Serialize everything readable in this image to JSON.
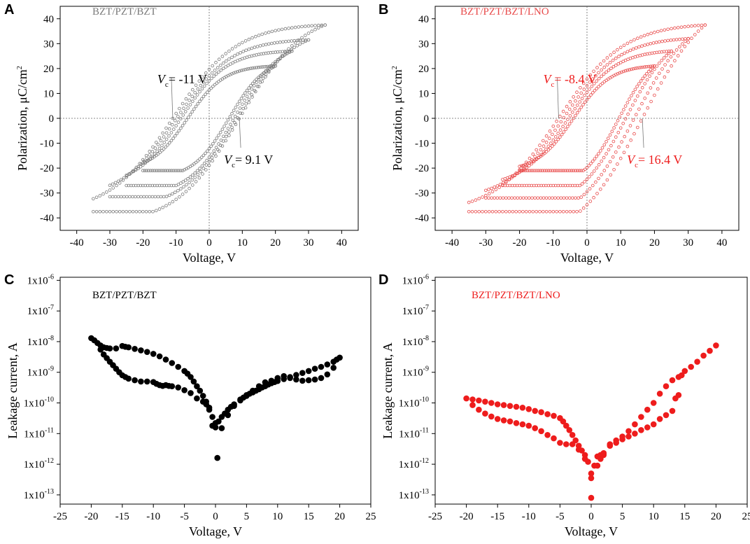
{
  "chart_data": [
    {
      "panel": "A",
      "type": "scatter",
      "subtype": "hysteresis-loops",
      "series_label": "BZT/PZT/BZT",
      "color": "#7a7a7a",
      "xlabel": "Voltage, V",
      "ylabel": "Polarization, μC/cm2",
      "xlim": [
        -45,
        45
      ],
      "ylim": [
        -45,
        45
      ],
      "xticks": [
        -40,
        -30,
        -20,
        -10,
        0,
        10,
        20,
        30,
        40
      ],
      "yticks": [
        -40,
        -30,
        -20,
        -10,
        0,
        10,
        20,
        30,
        40
      ],
      "loops": [
        {
          "vmax": 20,
          "pmax": 21,
          "upper_zero": -6.5,
          "lower_zero": 6.0,
          "up_start": -6.3,
          "down_end": 1.0,
          "offset": 0
        },
        {
          "vmax": 25,
          "pmax": 27,
          "upper_zero": -8.5,
          "lower_zero": 7.5,
          "up_start": -9.0,
          "down_end": 3.0,
          "offset": 0
        },
        {
          "vmax": 30,
          "pmax": 31.5,
          "upper_zero": -9.8,
          "lower_zero": 8.5,
          "up_start": -11.0,
          "down_end": 5.5,
          "offset": 0
        },
        {
          "vmax": 35,
          "pmax": 37.5,
          "upper_zero": -11.0,
          "lower_zero": 9.1,
          "up_start": -16.0,
          "down_end": 7.0,
          "offset": 0
        }
      ],
      "annotations": [
        {
          "var": "V",
          "sub": "c",
          "text": "= -11 V",
          "x": -11,
          "y": 0
        },
        {
          "var": "V",
          "sub": "c",
          "text": "= 9.1 V",
          "x": 9.1,
          "y": 0
        }
      ]
    },
    {
      "panel": "B",
      "type": "scatter",
      "subtype": "hysteresis-loops",
      "series_label": "BZT/PZT/BZT/LNO",
      "color": "#e84a4a",
      "xlabel": "Voltage, V",
      "ylabel": "Polarization, μC/cm2",
      "xlim": [
        -45,
        45
      ],
      "ylim": [
        -45,
        45
      ],
      "xticks": [
        -40,
        -30,
        -20,
        -10,
        0,
        10,
        20,
        30,
        40
      ],
      "yticks": [
        -40,
        -30,
        -20,
        -10,
        0,
        10,
        20,
        30,
        40
      ],
      "loops": [
        {
          "vmax": 20,
          "pmax": 21,
          "upper_zero": -4.0,
          "lower_zero": 9.5,
          "up_start": -3.0,
          "down_end": 4.0,
          "offset": 0
        },
        {
          "vmax": 25,
          "pmax": 27,
          "upper_zero": -5.5,
          "lower_zero": 11.5,
          "up_start": -5.0,
          "down_end": 7.0,
          "offset": 0
        },
        {
          "vmax": 30,
          "pmax": 32,
          "upper_zero": -7.0,
          "lower_zero": 14.0,
          "up_start": -8.0,
          "down_end": 10.0,
          "offset": 0
        },
        {
          "vmax": 35,
          "pmax": 37.5,
          "upper_zero": -8.4,
          "lower_zero": 16.4,
          "up_start": -12.0,
          "down_end": 12.0,
          "offset": 0
        }
      ],
      "annotations": [
        {
          "var": "V",
          "sub": "c",
          "text": "= -8.4 V",
          "x": -8.4,
          "y": 0
        },
        {
          "var": "V",
          "sub": "c",
          "text": "= 16.4 V",
          "x": 16.4,
          "y": 0
        }
      ]
    },
    {
      "panel": "C",
      "type": "scatter",
      "series_label": "BZT/PZT/BZT",
      "color": "#000000",
      "xlabel": "Voltage, V",
      "ylabel": "Leakage current, A",
      "yscale": "log",
      "xlim": [
        -25,
        25
      ],
      "ylim_exp": [
        -13.3,
        -5.9
      ],
      "xticks": [
        -25,
        -20,
        -15,
        -10,
        -5,
        0,
        5,
        10,
        15,
        20,
        25
      ],
      "yticks": [
        "1x10-6",
        "1x10-7",
        "1x10-8",
        "1x10-9",
        "1x10-10",
        "1x10-11",
        "1x10-12",
        "1x10-13"
      ],
      "points": [
        [
          -20,
          1.3e-08
        ],
        [
          -19.5,
          1.1e-08
        ],
        [
          -19,
          9e-09
        ],
        [
          -18.5,
          7.5e-09
        ],
        [
          -18,
          6.5e-09
        ],
        [
          -17.5,
          6.2e-09
        ],
        [
          -17,
          6e-09
        ],
        [
          -16,
          6e-09
        ],
        [
          -15,
          7.2e-09
        ],
        [
          -14.5,
          6.8e-09
        ],
        [
          -14,
          6.5e-09
        ],
        [
          -13,
          5.8e-09
        ],
        [
          -12,
          5.2e-09
        ],
        [
          -11,
          4.6e-09
        ],
        [
          -10,
          4e-09
        ],
        [
          -9,
          3.3e-09
        ],
        [
          -8,
          2.6e-09
        ],
        [
          -7,
          2e-09
        ],
        [
          -6,
          1.5e-09
        ],
        [
          -5,
          1.1e-09
        ],
        [
          -4.5,
          9e-10
        ],
        [
          -4,
          7e-10
        ],
        [
          -3.5,
          5e-10
        ],
        [
          -3,
          3.5e-10
        ],
        [
          -2.5,
          2.5e-10
        ],
        [
          -2,
          1.7e-10
        ],
        [
          -1.5,
          1.1e-10
        ],
        [
          -1,
          7e-11
        ],
        [
          -0.5,
          3.5e-11
        ],
        [
          0,
          2.2e-11
        ],
        [
          0.3,
          1.6e-12
        ],
        [
          -18.5,
          5.5e-09
        ],
        [
          -18,
          3.8e-09
        ],
        [
          -17.5,
          2.9e-09
        ],
        [
          -17,
          2.2e-09
        ],
        [
          -16.5,
          1.7e-09
        ],
        [
          -16,
          1.3e-09
        ],
        [
          -15.5,
          1e-09
        ],
        [
          -15,
          8e-10
        ],
        [
          -14.5,
          7e-10
        ],
        [
          -14,
          6.2e-10
        ],
        [
          -13,
          5.5e-10
        ],
        [
          -12,
          5e-10
        ],
        [
          -11,
          5e-10
        ],
        [
          -10,
          4.8e-10
        ],
        [
          -9.5,
          4.2e-10
        ],
        [
          -9,
          3.8e-10
        ],
        [
          -8.5,
          3.6e-10
        ],
        [
          -8,
          3.8e-10
        ],
        [
          -7.5,
          3.6e-10
        ],
        [
          -7,
          3.5e-10
        ],
        [
          -6,
          3.2e-10
        ],
        [
          -5,
          2.6e-10
        ],
        [
          -4,
          2.1e-10
        ],
        [
          -3,
          1.4e-10
        ],
        [
          -2,
          1.1e-10
        ],
        [
          -1.5,
          9e-11
        ],
        [
          -1,
          6e-11
        ],
        [
          -0.5,
          1.8e-11
        ],
        [
          0,
          1.6e-11
        ],
        [
          0.5,
          2.5e-11
        ],
        [
          1,
          3.5e-11
        ],
        [
          1.5,
          4.5e-11
        ],
        [
          2,
          6e-11
        ],
        [
          2.5,
          7.5e-11
        ],
        [
          3,
          9e-11
        ],
        [
          4,
          1.2e-10
        ],
        [
          4.5,
          1.5e-10
        ],
        [
          5,
          1.7e-10
        ],
        [
          5.5,
          2e-10
        ],
        [
          6,
          2.2e-10
        ],
        [
          6.5,
          2.5e-10
        ],
        [
          7,
          2.8e-10
        ],
        [
          7.5,
          3.2e-10
        ],
        [
          8,
          3.5e-10
        ],
        [
          8.5,
          4e-10
        ],
        [
          9,
          4.4e-10
        ],
        [
          9.5,
          4.8e-10
        ],
        [
          10,
          5.2e-10
        ],
        [
          11,
          6e-10
        ],
        [
          12,
          7e-10
        ],
        [
          13,
          8.2e-10
        ],
        [
          14,
          9.5e-10
        ],
        [
          15,
          1.1e-09
        ],
        [
          16,
          1.3e-09
        ],
        [
          17,
          1.5e-09
        ],
        [
          18,
          1.8e-09
        ],
        [
          19,
          2.2e-09
        ],
        [
          19.5,
          2.6e-09
        ],
        [
          20,
          3e-09
        ],
        [
          1,
          1.5e-11
        ],
        [
          2,
          4e-11
        ],
        [
          3,
          8e-11
        ],
        [
          4,
          1.3e-10
        ],
        [
          5,
          1.8e-10
        ],
        [
          6,
          2.5e-10
        ],
        [
          7,
          3.5e-10
        ],
        [
          8,
          4.7e-10
        ],
        [
          9,
          5.3e-10
        ],
        [
          10,
          6.5e-10
        ],
        [
          11,
          7.5e-10
        ],
        [
          12,
          6.5e-10
        ],
        [
          13,
          5.8e-10
        ],
        [
          14,
          5.3e-10
        ],
        [
          15,
          5.5e-10
        ],
        [
          16,
          5.8e-10
        ],
        [
          17,
          6.5e-10
        ],
        [
          18,
          8.5e-10
        ],
        [
          19,
          1.4e-09
        ]
      ]
    },
    {
      "panel": "D",
      "type": "scatter",
      "series_label": "BZT/PZT/BZT/LNO",
      "color": "#ee1c1c",
      "xlabel": "Voltage, V",
      "ylabel": "Leakage current, A",
      "yscale": "log",
      "xlim": [
        -25,
        25
      ],
      "ylim_exp": [
        -13.3,
        -5.9
      ],
      "xticks": [
        -25,
        -20,
        -15,
        -10,
        -5,
        0,
        5,
        10,
        15,
        20,
        25
      ],
      "yticks": [
        "1x10-6",
        "1x10-7",
        "1x10-8",
        "1x10-9",
        "1x10-10",
        "1x10-11",
        "1x10-12",
        "1x10-13"
      ],
      "points": [
        [
          -20,
          1.4e-10
        ],
        [
          -19,
          1.3e-10
        ],
        [
          -18,
          1.2e-10
        ],
        [
          -17,
          1.1e-10
        ],
        [
          -16,
          1e-10
        ],
        [
          -15,
          9e-11
        ],
        [
          -14,
          8.5e-11
        ],
        [
          -13,
          8e-11
        ],
        [
          -12,
          7.5e-11
        ],
        [
          -11,
          7e-11
        ],
        [
          -10,
          6.3e-11
        ],
        [
          -9,
          5.5e-11
        ],
        [
          -8,
          5e-11
        ],
        [
          -7,
          4.3e-11
        ],
        [
          -6,
          3.8e-11
        ],
        [
          -5,
          3.2e-11
        ],
        [
          -4.5,
          2.5e-11
        ],
        [
          -4,
          1.8e-11
        ],
        [
          -3.5,
          1.3e-11
        ],
        [
          -3,
          9e-12
        ],
        [
          -2.5,
          6e-12
        ],
        [
          -2,
          4e-12
        ],
        [
          -1.5,
          2.8e-12
        ],
        [
          -1,
          2e-12
        ],
        [
          -0.5,
          1.2e-12
        ],
        [
          0,
          5e-13
        ],
        [
          0,
          8e-14
        ],
        [
          -19,
          8.5e-11
        ],
        [
          -18,
          6e-11
        ],
        [
          -17,
          4.5e-11
        ],
        [
          -16,
          3.6e-11
        ],
        [
          -15,
          3e-11
        ],
        [
          -14,
          2.7e-11
        ],
        [
          -13,
          2.5e-11
        ],
        [
          -12,
          2.2e-11
        ],
        [
          -11,
          2e-11
        ],
        [
          -10,
          1.8e-11
        ],
        [
          -9,
          1.5e-11
        ],
        [
          -8,
          1.2e-11
        ],
        [
          -7,
          9e-12
        ],
        [
          -6,
          7e-12
        ],
        [
          -5,
          5e-12
        ],
        [
          -4,
          4.5e-12
        ],
        [
          -3,
          4.5e-12
        ],
        [
          -2,
          3e-12
        ],
        [
          -1,
          1.5e-12
        ],
        [
          0,
          3.5e-13
        ],
        [
          0.5,
          9e-13
        ],
        [
          1,
          1.8e-12
        ],
        [
          1.5,
          2e-12
        ],
        [
          2,
          2.3e-12
        ],
        [
          3,
          4e-12
        ],
        [
          4,
          5e-12
        ],
        [
          5,
          6.5e-12
        ],
        [
          6,
          8e-12
        ],
        [
          7,
          1e-11
        ],
        [
          8,
          1.3e-11
        ],
        [
          9,
          1.6e-11
        ],
        [
          10,
          2e-11
        ],
        [
          11,
          3e-11
        ],
        [
          12,
          4e-11
        ],
        [
          13,
          5.5e-11
        ],
        [
          13.5,
          1.4e-10
        ],
        [
          14,
          1.8e-10
        ],
        [
          1,
          9e-13
        ],
        [
          1.5,
          1.5e-12
        ],
        [
          2,
          2e-12
        ],
        [
          3,
          4.5e-12
        ],
        [
          4,
          6e-12
        ],
        [
          5,
          8e-12
        ],
        [
          6,
          1.2e-11
        ],
        [
          7,
          2e-11
        ],
        [
          8,
          3.5e-11
        ],
        [
          9,
          6e-11
        ],
        [
          10,
          1e-10
        ],
        [
          11,
          2e-10
        ],
        [
          12,
          3.5e-10
        ],
        [
          13,
          5.5e-10
        ],
        [
          14,
          7e-10
        ],
        [
          14.5,
          8e-10
        ],
        [
          15,
          1.1e-09
        ],
        [
          16,
          1.5e-09
        ],
        [
          17,
          2.2e-09
        ],
        [
          18,
          3.5e-09
        ],
        [
          19,
          5e-09
        ],
        [
          20,
          7.5e-09
        ]
      ]
    }
  ]
}
